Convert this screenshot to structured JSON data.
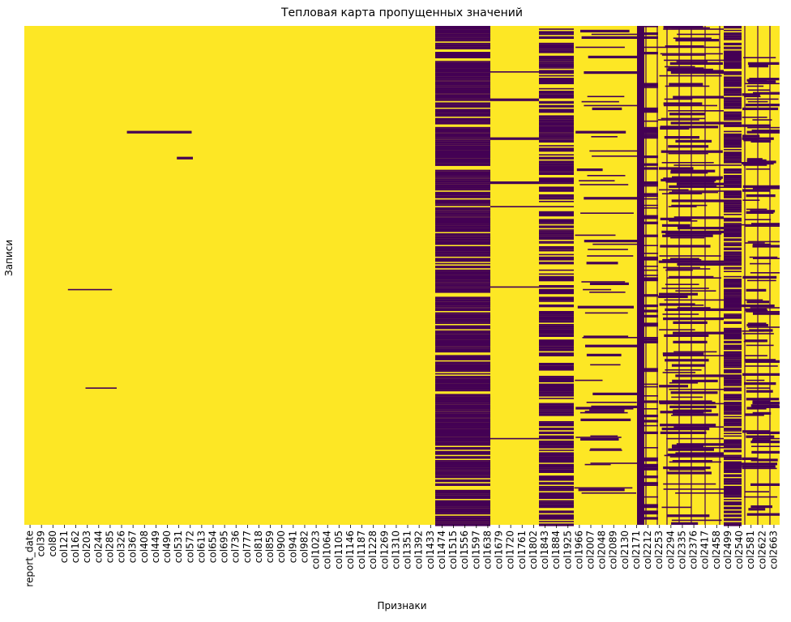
{
  "chart_data": {
    "type": "heatmap",
    "title": "Тепловая карта пропущенных значений",
    "xlabel": "Признаки",
    "ylabel": "Записи",
    "colormap": "viridis (binary: present / missing)",
    "colors": {
      "present": "#fde725",
      "missing": "#440154"
    },
    "grid": false,
    "legend": "none",
    "colorbar": false,
    "x_tick_labels": [
      "report_date",
      "col39",
      "col80",
      "col121",
      "col162",
      "col203",
      "col244",
      "col285",
      "col326",
      "col367",
      "col408",
      "col449",
      "col490",
      "col531",
      "col572",
      "col613",
      "col654",
      "col695",
      "col736",
      "col777",
      "col818",
      "col859",
      "col900",
      "col941",
      "col982",
      "col1023",
      "col1064",
      "col1105",
      "col1146",
      "col1187",
      "col1228",
      "col1269",
      "col1310",
      "col1351",
      "col1392",
      "col1433",
      "col1474",
      "col1515",
      "col1556",
      "col1597",
      "col1638",
      "col1679",
      "col1720",
      "col1761",
      "col1802",
      "col1843",
      "col1884",
      "col1925",
      "col1966",
      "col2007",
      "col2048",
      "col2089",
      "col2130",
      "col2171",
      "col2212",
      "col2253",
      "col2294",
      "col2335",
      "col2376",
      "col2417",
      "col2458",
      "col2499",
      "col2540",
      "col2581",
      "col2622",
      "col2663"
    ],
    "y_tick_labels": []
  }
}
